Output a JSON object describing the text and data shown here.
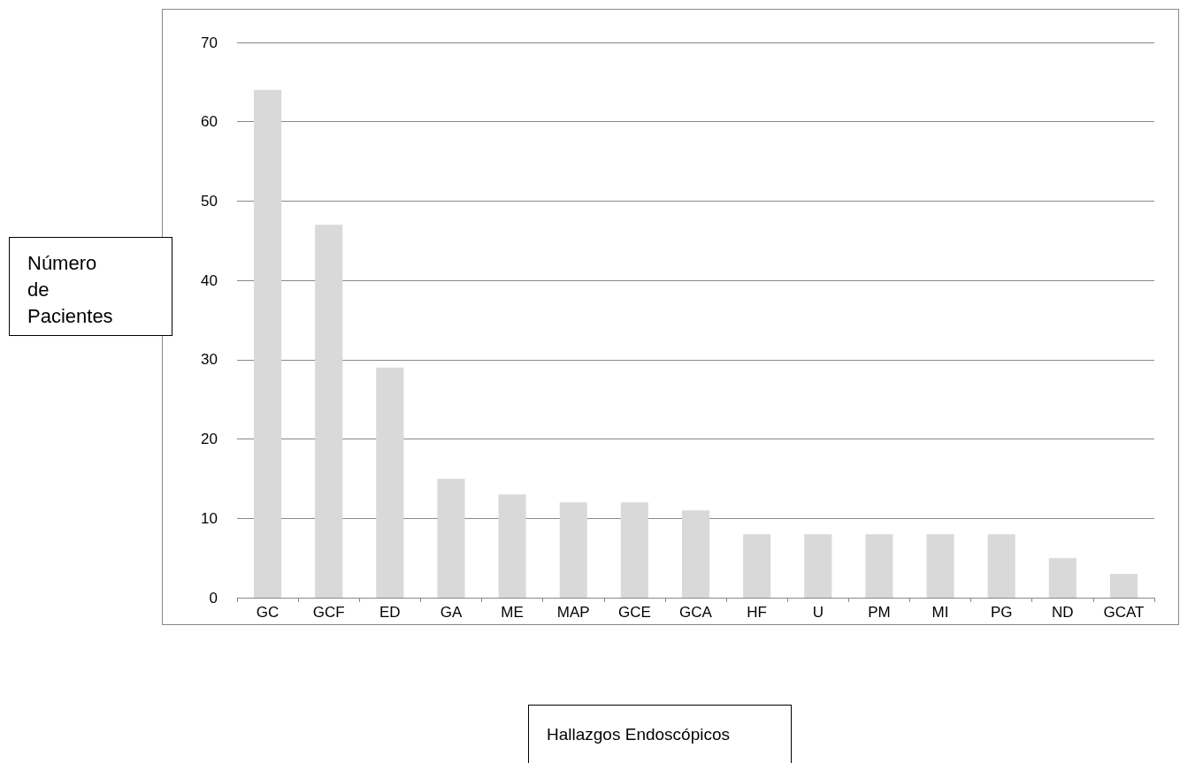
{
  "chart_data": {
    "type": "bar",
    "annotations": [
      "Hallazgos Endoscópicos"
    ],
    "ylabel": "Número de Pacientes",
    "categories": [
      "GC",
      "GCF",
      "ED",
      "GA",
      "ME",
      "MAP",
      "GCE",
      "GCA",
      "HF",
      "U",
      "PM",
      "MI",
      "PG",
      "ND",
      "GCAT"
    ],
    "values": [
      64,
      47,
      29,
      15,
      13,
      12,
      12,
      11,
      8,
      8,
      8,
      8,
      8,
      5,
      3
    ],
    "color": "#d9d9d9",
    "ylim": [
      0,
      70
    ],
    "yticks": [
      0,
      10,
      20,
      30,
      40,
      50,
      60,
      70
    ],
    "grid": "y"
  }
}
